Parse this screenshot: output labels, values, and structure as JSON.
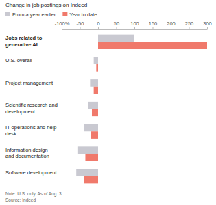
{
  "chart_data": {
    "type": "bar",
    "orientation": "horizontal",
    "title": "Change in job postings on Indeed",
    "categories": [
      "Jobs related to generative AI",
      "U.S. overall",
      "Project management",
      "Scientific research and development",
      "IT operations and help desk",
      "Information design and documentation",
      "Software development"
    ],
    "series": [
      {
        "name": "From a year earlier",
        "color": "#c9c9d1",
        "values": [
          100,
          -12,
          -22,
          -28,
          -38,
          -55,
          -60
        ]
      },
      {
        "name": "Year to date",
        "color": "#f0796b",
        "values": [
          300,
          -5,
          -12,
          -17,
          -20,
          -35,
          -38
        ]
      }
    ],
    "xlim": [
      -100,
      300
    ],
    "xticks": [
      {
        "value": -100,
        "label": "-100%"
      },
      -50,
      0,
      50,
      100,
      150,
      200,
      250,
      300
    ],
    "legend": "top-left",
    "grid": false,
    "annotations": [
      "Note: U.S. only. As of Aug. 3",
      "Source: Indeed"
    ]
  }
}
